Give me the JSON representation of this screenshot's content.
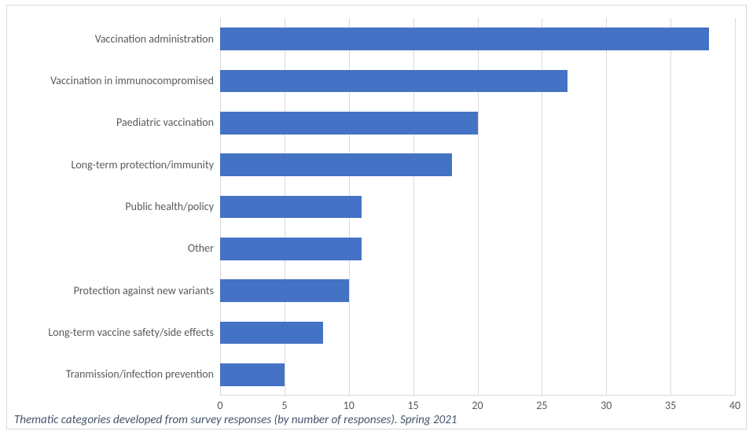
{
  "chart": {
    "type": "bar-horizontal",
    "background_color": "#ffffff",
    "border_color": "#d9d9d9",
    "bar_color": "#4472c4",
    "grid_color": "#d9d9d9",
    "axis_label_color": "#595959",
    "caption_color": "#44546a",
    "label_fontsize": 14,
    "caption_fontsize": 15,
    "xlim": [
      0,
      40
    ],
    "xtick_step": 5,
    "xticks": [
      0,
      5,
      10,
      15,
      20,
      25,
      30,
      35,
      40
    ],
    "bar_width_ratio": 0.54,
    "categories": [
      "Vaccination administration",
      "Vaccination in immunocompromised",
      "Paediatric vaccination",
      "Long-term protection/immunity",
      "Public health/policy",
      "Other",
      "Protection against new variants",
      "Long-term vaccine safety/side effects",
      "Tranmission/infection prevention"
    ],
    "values": [
      38,
      27,
      20,
      18,
      11,
      11,
      10,
      8,
      5
    ]
  },
  "caption": "Thematic categories developed from survey responses (by number of responses). Spring 2021"
}
